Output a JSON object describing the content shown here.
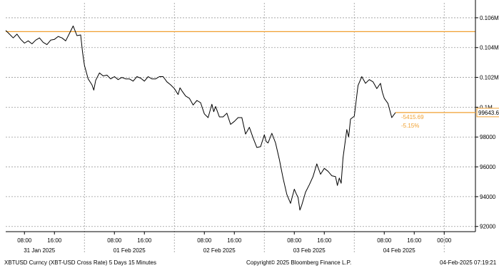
{
  "chart_data": {
    "type": "line",
    "y_axis": {
      "position": "right",
      "ylim": [
        91700,
        107000
      ],
      "ticks": [
        {
          "value": 106000,
          "label": "0.106M"
        },
        {
          "value": 104000,
          "label": "0.104M"
        },
        {
          "value": 102000,
          "label": "0.102M"
        },
        {
          "value": 100000,
          "label": "0.1M"
        },
        {
          "value": 98000,
          "label": "98000"
        },
        {
          "value": 96000,
          "label": "96000"
        },
        {
          "value": 94000,
          "label": "94000"
        },
        {
          "value": 92000,
          "label": "92000"
        }
      ]
    },
    "x_axis": {
      "range_hours": [
        0,
        104
      ],
      "time_ticks": [
        {
          "h": 5,
          "label": "08:00"
        },
        {
          "h": 13,
          "label": "16:00"
        },
        {
          "h": 29,
          "label": "08:00"
        },
        {
          "h": 37,
          "label": "16:00"
        },
        {
          "h": 53,
          "label": "08:00"
        },
        {
          "h": 61,
          "label": "16:00"
        },
        {
          "h": 77,
          "label": "08:00"
        },
        {
          "h": 85,
          "label": "16:00"
        },
        {
          "h": 101,
          "label": "08:00"
        },
        {
          "h": 109,
          "label": "16:00"
        },
        {
          "h": 117,
          "label": "00:00"
        }
      ],
      "day_separators": [
        21,
        45,
        69,
        93,
        117
      ],
      "date_labels": [
        {
          "h": 9,
          "label": "31 Jan 2025"
        },
        {
          "h": 33,
          "label": "01 Feb 2025"
        },
        {
          "h": 57,
          "label": "02 Feb 2025"
        },
        {
          "h": 81,
          "label": "03 Feb 2025"
        },
        {
          "h": 105,
          "label": "04 Feb 2025"
        }
      ]
    },
    "reference_line": {
      "value": 105070,
      "color": "#f0a030"
    },
    "last_price": {
      "value": 99643.6,
      "label": "99643.6"
    },
    "change_labels": [
      "-5415.69",
      "-5.15%"
    ],
    "colors": {
      "line": "#000000",
      "accent": "#f0a030",
      "grid": "#999999"
    },
    "series": [
      {
        "points": [
          [
            0,
            105150
          ],
          [
            1,
            104900
          ],
          [
            2,
            104650
          ],
          [
            3,
            104900
          ],
          [
            4,
            104550
          ],
          [
            5,
            104300
          ],
          [
            6,
            104450
          ],
          [
            7,
            104250
          ],
          [
            8,
            104500
          ],
          [
            9,
            104650
          ],
          [
            10,
            104350
          ],
          [
            11,
            104200
          ],
          [
            12,
            104500
          ],
          [
            13,
            104550
          ],
          [
            14,
            104750
          ],
          [
            15,
            104650
          ],
          [
            16,
            104450
          ],
          [
            17,
            104950
          ],
          [
            18,
            105450
          ],
          [
            19,
            104800
          ],
          [
            20,
            104850
          ],
          [
            20.5,
            103700
          ],
          [
            21,
            102800
          ],
          [
            22,
            101900
          ],
          [
            23,
            101500
          ],
          [
            23.5,
            101150
          ],
          [
            24,
            101800
          ],
          [
            25,
            102300
          ],
          [
            26,
            102100
          ],
          [
            27,
            102150
          ],
          [
            28,
            101900
          ],
          [
            29,
            102050
          ],
          [
            30,
            101850
          ],
          [
            31,
            102000
          ],
          [
            32,
            101900
          ],
          [
            33,
            101900
          ],
          [
            34,
            101750
          ],
          [
            35,
            102050
          ],
          [
            36,
            101950
          ],
          [
            37,
            101750
          ],
          [
            38,
            102050
          ],
          [
            39,
            101900
          ],
          [
            40,
            101900
          ],
          [
            41,
            102050
          ],
          [
            42,
            102050
          ],
          [
            43,
            101700
          ],
          [
            44,
            101500
          ],
          [
            45,
            101250
          ],
          [
            46,
            100850
          ],
          [
            46.5,
            101300
          ],
          [
            47,
            101100
          ],
          [
            48,
            100750
          ],
          [
            49,
            100600
          ],
          [
            50,
            100150
          ],
          [
            51,
            100450
          ],
          [
            52,
            100300
          ],
          [
            53,
            99550
          ],
          [
            54,
            99300
          ],
          [
            55,
            100200
          ],
          [
            55.5,
            99700
          ],
          [
            56,
            100050
          ],
          [
            57,
            99350
          ],
          [
            58,
            99350
          ],
          [
            59,
            99600
          ],
          [
            60,
            98850
          ],
          [
            61,
            99050
          ],
          [
            62,
            99300
          ],
          [
            63,
            99300
          ],
          [
            64,
            98200
          ],
          [
            65,
            98650
          ],
          [
            66,
            97950
          ],
          [
            67,
            97300
          ],
          [
            68,
            97350
          ],
          [
            69,
            98150
          ],
          [
            69.5,
            97700
          ],
          [
            70,
            97600
          ],
          [
            71,
            98250
          ],
          [
            72,
            97600
          ],
          [
            73,
            96500
          ],
          [
            74,
            95250
          ],
          [
            75,
            94150
          ],
          [
            76,
            93550
          ],
          [
            77,
            94500
          ],
          [
            77.5,
            94200
          ],
          [
            78,
            93950
          ],
          [
            78.5,
            93100
          ],
          [
            79,
            93450
          ],
          [
            80,
            94300
          ],
          [
            81,
            94800
          ],
          [
            82,
            95350
          ],
          [
            83,
            96200
          ],
          [
            84,
            95500
          ],
          [
            85,
            95900
          ],
          [
            86,
            95700
          ],
          [
            87,
            95400
          ],
          [
            88,
            95350
          ],
          [
            88.5,
            94750
          ],
          [
            89,
            95250
          ],
          [
            89.5,
            94900
          ],
          [
            90,
            96600
          ],
          [
            91,
            98500
          ],
          [
            91.5,
            98000
          ],
          [
            92,
            99200
          ],
          [
            93,
            99400
          ],
          [
            94,
            101450
          ],
          [
            95,
            102050
          ],
          [
            96,
            101600
          ],
          [
            97,
            101850
          ],
          [
            98,
            101700
          ],
          [
            99,
            101250
          ],
          [
            100,
            101600
          ],
          [
            100.5,
            101000
          ],
          [
            101,
            100600
          ],
          [
            102,
            100250
          ],
          [
            103,
            99300
          ],
          [
            104,
            99643.6
          ]
        ]
      }
    ]
  },
  "footer": {
    "left": "XBTUSD Curncy (XBT-USD Cross Rate) 5 Days 15 Minutes",
    "center": "Copyright© 2025 Bloomberg Finance L.P.",
    "right": "04-Feb-2025 07:19:21"
  }
}
